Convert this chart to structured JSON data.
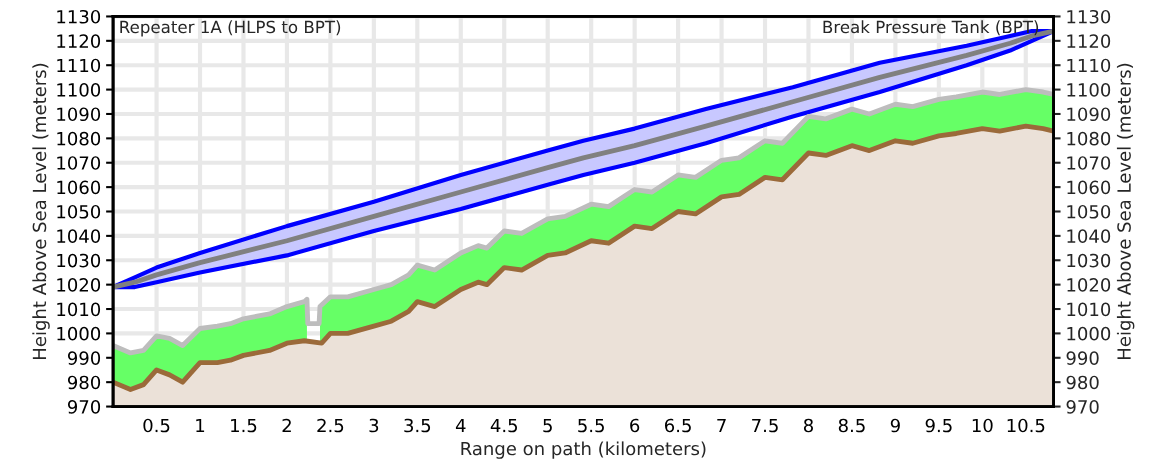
{
  "chart_data": {
    "type": "line",
    "xlabel": "Range on path (kilometers)",
    "ylabel": "Height Above Sea Level (meters)",
    "y2label": "Height Above Sea Level (meters)",
    "annotations": [
      "Repeater 1A (HLPS to BPT)",
      "Break Pressure Tank (BPT)"
    ],
    "series": [
      {
        "type": "area",
        "color": "#66ff66",
        "x": [
          0,
          0.2,
          0.35,
          0.5,
          0.65,
          0.8,
          1.0,
          1.2,
          1.35,
          1.5,
          1.8,
          2.0,
          2.2,
          2.23,
          2.24,
          2.37,
          2.38,
          2.5,
          2.7,
          3.0,
          3.2,
          3.4,
          3.5,
          3.7,
          4.0,
          4.2,
          4.3,
          4.5,
          4.7,
          5.0,
          5.2,
          5.5,
          5.7,
          6.0,
          6.2,
          6.5,
          6.7,
          7.0,
          7.2,
          7.5,
          7.7,
          8.0,
          8.2,
          8.5,
          8.7,
          9.0,
          9.2,
          9.5,
          9.7,
          10.0,
          10.2,
          10.5,
          10.7,
          10.82
        ],
        "values": [
          995,
          992,
          993,
          999,
          998,
          995,
          1002,
          1003,
          1004,
          1006,
          1008,
          1011,
          1013,
          1014,
          null,
          null,
          1011,
          1015,
          1015,
          1018,
          1020,
          1024,
          1028,
          1026,
          1033,
          1036,
          1035,
          1042,
          1041,
          1047,
          1048,
          1053,
          1052,
          1059,
          1058,
          1065,
          1064,
          1071,
          1072,
          1079,
          1078,
          1089,
          1088,
          1092,
          1090,
          1094,
          1093,
          1096,
          1097,
          1099,
          1098,
          1100,
          1099,
          1098
        ]
      },
      {
        "type": "area",
        "color": "#9b6a3a",
        "line_style": "solid",
        "x": [
          0,
          0.2,
          0.35,
          0.5,
          0.65,
          0.8,
          1.0,
          1.2,
          1.35,
          1.5,
          1.8,
          2.0,
          2.2,
          2.4,
          2.5,
          2.7,
          3.0,
          3.2,
          3.4,
          3.5,
          3.7,
          4.0,
          4.2,
          4.3,
          4.5,
          4.7,
          5.0,
          5.2,
          5.5,
          5.7,
          6.0,
          6.2,
          6.5,
          6.7,
          7.0,
          7.2,
          7.5,
          7.7,
          8.0,
          8.2,
          8.5,
          8.7,
          9.0,
          9.2,
          9.5,
          9.7,
          10.0,
          10.2,
          10.5,
          10.7,
          10.82
        ],
        "values": [
          980,
          977,
          979,
          985,
          983,
          980,
          988,
          988,
          989,
          991,
          993,
          996,
          997,
          996,
          1000,
          1000,
          1003,
          1005,
          1009,
          1013,
          1011,
          1018,
          1021,
          1020,
          1027,
          1026,
          1032,
          1033,
          1038,
          1037,
          1044,
          1043,
          1050,
          1049,
          1056,
          1057,
          1064,
          1063,
          1074,
          1073,
          1077,
          1075,
          1079,
          1078,
          1081,
          1082,
          1084,
          1083,
          1085,
          1084,
          1083
        ]
      },
      {
        "color": "#bdbdbd",
        "x": [
          0,
          0.2,
          0.35,
          0.5,
          0.65,
          0.8,
          1.0,
          1.2,
          1.35,
          1.5,
          1.8,
          2.0,
          2.2,
          2.23,
          2.24,
          2.37,
          2.38,
          2.5,
          2.7,
          3.0,
          3.2,
          3.4,
          3.5,
          3.7,
          4.0,
          4.2,
          4.3,
          4.5,
          4.7,
          5.0,
          5.2,
          5.5,
          5.7,
          6.0,
          6.2,
          6.5,
          6.7,
          7.0,
          7.2,
          7.5,
          7.7,
          8.0,
          8.2,
          8.5,
          8.7,
          9.0,
          9.2,
          9.5,
          9.7,
          10.0,
          10.2,
          10.5,
          10.7,
          10.82
        ],
        "values": [
          995,
          992,
          993,
          999,
          998,
          995,
          1002,
          1003,
          1004,
          1006,
          1008,
          1011,
          1013,
          1014,
          1004,
          1004,
          1011,
          1015,
          1015,
          1018,
          1020,
          1024,
          1028,
          1026,
          1033,
          1036,
          1035,
          1042,
          1041,
          1047,
          1048,
          1053,
          1052,
          1059,
          1058,
          1065,
          1064,
          1071,
          1072,
          1079,
          1078,
          1089,
          1088,
          1092,
          1090,
          1094,
          1093,
          1096,
          1097,
          1099,
          1098,
          1100,
          1099,
          1098
        ]
      },
      {
        "color": "#808080",
        "x": [
          0,
          0.25,
          0.5,
          1,
          2,
          3,
          4,
          5,
          5.41,
          6,
          6.82,
          7.82,
          8.82,
          9.82,
          10.32,
          10.57,
          10.82
        ],
        "values": [
          1019,
          1021,
          1024,
          1029,
          1038,
          1048,
          1058,
          1068,
          1072,
          1077,
          1085,
          1095,
          1105,
          1114,
          1119,
          1122,
          1124
        ],
        "lower": [
          1019,
          1019,
          1021,
          1025,
          1032,
          1042,
          1051,
          1061,
          1065,
          1070,
          1078,
          1089,
          1099,
          1110,
          1116,
          1120,
          1124
        ],
        "upper": [
          1019,
          1023,
          1027,
          1033,
          1044,
          1054,
          1065,
          1075,
          1079,
          1084,
          1092,
          1101,
          1111,
          1118,
          1122,
          1124,
          1124
        ]
      }
    ],
    "xlim": [
      0,
      10.82
    ],
    "xticks": [
      0.5,
      1,
      1.5,
      2,
      2.5,
      3,
      3.5,
      4,
      4.5,
      5,
      5.5,
      6,
      6.5,
      7,
      7.5,
      8,
      8.5,
      9,
      9.5,
      10,
      10.5
    ],
    "ylim": [
      970,
      1130
    ],
    "yticks": [
      970,
      980,
      990,
      1000,
      1010,
      1020,
      1030,
      1040,
      1050,
      1060,
      1070,
      1080,
      1090,
      1100,
      1110,
      1120,
      1130
    ],
    "y2lim": [
      970,
      1130
    ],
    "y2ticks": [
      970,
      980,
      990,
      1000,
      1010,
      1020,
      1030,
      1040,
      1050,
      1060,
      1070,
      1080,
      1090,
      1100,
      1110,
      1120,
      1130
    ],
    "grid": true
  }
}
